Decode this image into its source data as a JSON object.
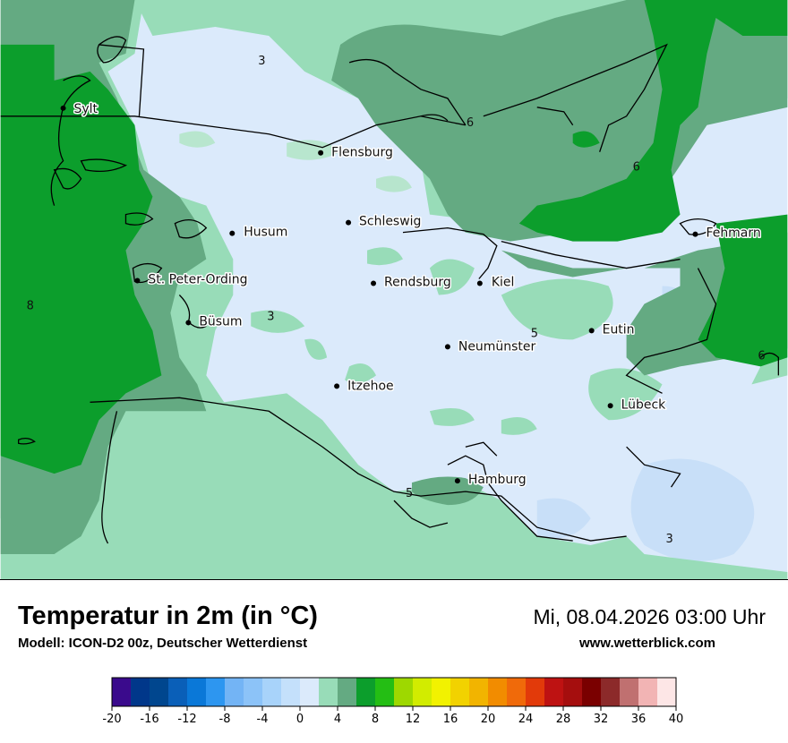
{
  "header": {
    "title": "Temperatur in 2m (in °C)",
    "subtitle": "Modell: ICON-D2 00z, Deutscher Wetterdienst",
    "datetime": "Mi, 08.04.2026 03:00 Uhr",
    "website": "www.wetterblick.com"
  },
  "map": {
    "cities": [
      {
        "name": "Sylt"
      },
      {
        "name": "Flensburg"
      },
      {
        "name": "Schleswig"
      },
      {
        "name": "Husum"
      },
      {
        "name": "Fehmarn"
      },
      {
        "name": "St. Peter-Ording"
      },
      {
        "name": "Rendsburg"
      },
      {
        "name": "Kiel"
      },
      {
        "name": "Büsum"
      },
      {
        "name": "Eutin"
      },
      {
        "name": "Neumünster"
      },
      {
        "name": "Itzehoe"
      },
      {
        "name": "Lübeck"
      },
      {
        "name": "Hamburg"
      }
    ],
    "isotherm_labels": [
      "3",
      "6",
      "6",
      "8",
      "3",
      "5",
      "6",
      "5",
      "3"
    ]
  },
  "legend": {
    "ticks": [
      "-20",
      "-16",
      "-12",
      "-8",
      "-4",
      "0",
      "4",
      "8",
      "12",
      "16",
      "20",
      "24",
      "28",
      "32",
      "36",
      "40"
    ],
    "colors": [
      "#3a0a8c",
      "#00378a",
      "#00468e",
      "#0a5fb8",
      "#0a78d8",
      "#2d96f0",
      "#73b4f5",
      "#8cc3f8",
      "#a8d3fa",
      "#c4e0fb",
      "#dbeafb",
      "#98dcb8",
      "#64aa82",
      "#0c9e2c",
      "#24be14",
      "#9ed800",
      "#d2ec00",
      "#f2f200",
      "#f2d200",
      "#f2b400",
      "#f28c00",
      "#f06a0a",
      "#e23a0a",
      "#be1212",
      "#a50e0e",
      "#7a0000",
      "#8c2a2a",
      "#c07070",
      "#f2b4b4",
      "#fde6e6"
    ]
  }
}
